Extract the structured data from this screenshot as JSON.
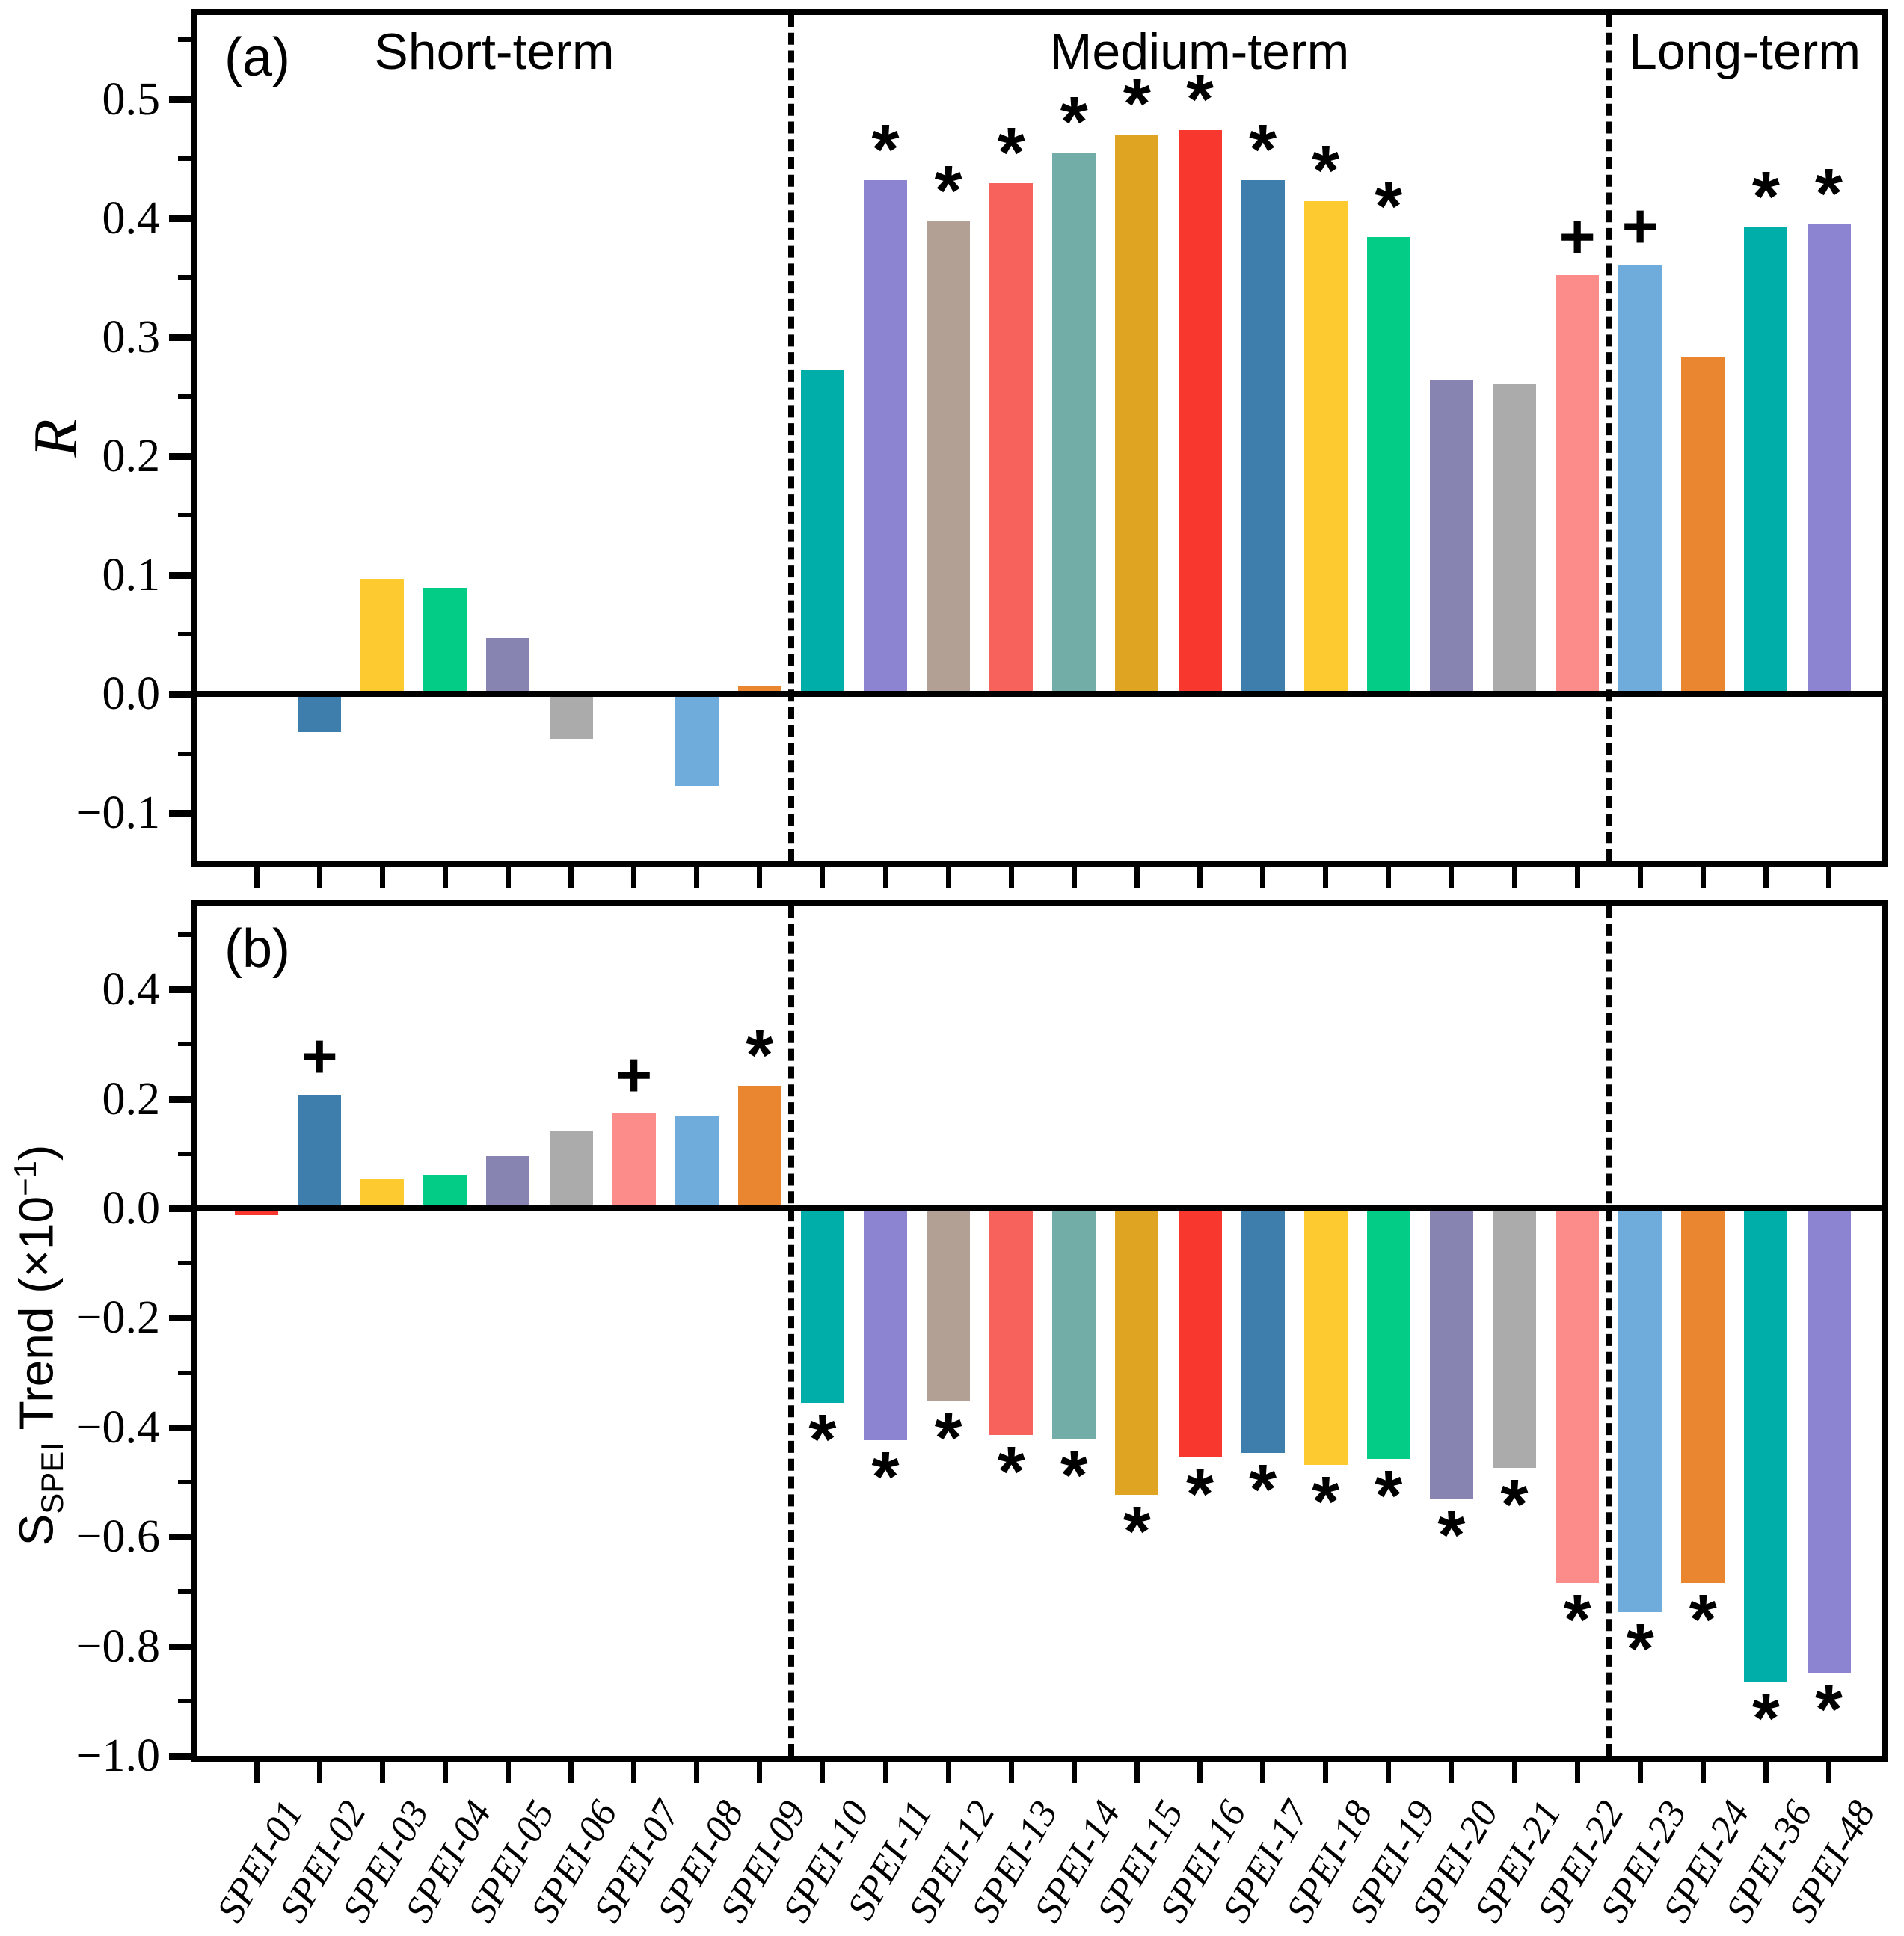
{
  "chart_data": [
    {
      "type": "bar",
      "panel_label": "(a)",
      "ylabel": "R",
      "yticks": [
        0.5,
        0.4,
        0.3,
        0.2,
        0.1,
        0.0,
        -0.1
      ],
      "ylim": [
        -0.141,
        0.571
      ],
      "grid": false,
      "legend": "none",
      "sections": [
        {
          "label": "Short-term",
          "from": "SPEI-01",
          "to": "SPEI-09"
        },
        {
          "label": "Medium-term",
          "from": "SPEI-10",
          "to": "SPEI-22"
        },
        {
          "label": "Long-term",
          "from": "SPEI-23",
          "to": "SPEI-48"
        }
      ],
      "categories": [
        "SPEI-01",
        "SPEI-02",
        "SPEI-03",
        "SPEI-04",
        "SPEI-05",
        "SPEI-06",
        "SPEI-07",
        "SPEI-08",
        "SPEI-09",
        "SPEI-10",
        "SPEI-11",
        "SPEI-12",
        "SPEI-13",
        "SPEI-14",
        "SPEI-15",
        "SPEI-16",
        "SPEI-17",
        "SPEI-18",
        "SPEI-19",
        "SPEI-20",
        "SPEI-21",
        "SPEI-22",
        "SPEI-23",
        "SPEI-24",
        "SPEI-36",
        "SPEI-48"
      ],
      "values": [
        0.0,
        -0.032,
        0.097,
        0.089,
        0.047,
        -0.038,
        0.0,
        -0.077,
        0.007,
        0.272,
        0.432,
        0.397,
        0.429,
        0.455,
        0.47,
        0.474,
        0.432,
        0.414,
        0.384,
        0.264,
        0.261,
        0.352,
        0.361,
        0.283,
        0.392,
        0.395
      ],
      "significance": [
        "",
        "",
        "",
        "",
        "",
        "",
        "",
        "",
        "",
        "",
        "*",
        "*",
        "*",
        "*",
        "*",
        "*",
        "*",
        "*",
        "*",
        "",
        "",
        "+",
        "+",
        "",
        "*",
        "*"
      ]
    },
    {
      "type": "bar",
      "panel_label": "(b)",
      "ylabel": "S_SPEI Trend (×10^−1)",
      "ylabel_parts": {
        "base": "S",
        "sub": "SPEI",
        "mid": " Trend (×10",
        "sup": "−1",
        "end": ")"
      },
      "yticks": [
        0.4,
        0.2,
        0.0,
        -0.2,
        -0.4,
        -0.6,
        -0.8,
        -1.0
      ],
      "ylim": [
        -1.0,
        0.552
      ],
      "grid": false,
      "legend": "none",
      "categories": [
        "SPEI-01",
        "SPEI-02",
        "SPEI-03",
        "SPEI-04",
        "SPEI-05",
        "SPEI-06",
        "SPEI-07",
        "SPEI-08",
        "SPEI-09",
        "SPEI-10",
        "SPEI-11",
        "SPEI-12",
        "SPEI-13",
        "SPEI-14",
        "SPEI-15",
        "SPEI-16",
        "SPEI-17",
        "SPEI-18",
        "SPEI-19",
        "SPEI-20",
        "SPEI-21",
        "SPEI-22",
        "SPEI-23",
        "SPEI-24",
        "SPEI-36",
        "SPEI-48"
      ],
      "values": [
        -0.012,
        0.208,
        0.053,
        0.061,
        0.095,
        0.141,
        0.174,
        0.168,
        0.224,
        -0.355,
        -0.424,
        -0.352,
        -0.414,
        -0.421,
        -0.523,
        -0.455,
        -0.447,
        -0.468,
        -0.457,
        -0.53,
        -0.474,
        -0.685,
        -0.738,
        -0.684,
        -0.865,
        -0.849
      ],
      "significance": [
        "",
        "+",
        "",
        "",
        "",
        "",
        "+",
        "",
        "*",
        "*",
        "*",
        "*",
        "*",
        "*",
        "*",
        "*",
        "*",
        "*",
        "*",
        "*",
        "*",
        "*",
        "*",
        "*",
        "*",
        "*"
      ]
    }
  ],
  "bar_colors": [
    "#F8382F",
    "#3D7EAD",
    "#FDCA30",
    "#03CC87",
    "#8884B2",
    "#ACABAB",
    "#FB8C8A",
    "#6FACDC",
    "#EA8630",
    "#00AEA9",
    "#8C84D0",
    "#B2A094",
    "#F7625D",
    "#72ADA8",
    "#DFA522",
    "#F8382F",
    "#3D7EAD",
    "#FDCA30",
    "#03CC87",
    "#8884B2",
    "#ACABAB",
    "#FB8C8A",
    "#6FACDC",
    "#EA8630",
    "#00AEA9",
    "#8C84D0"
  ],
  "marker_glyphs": {
    "significant": "*",
    "marginal": "+"
  },
  "axis_color": "#000000"
}
